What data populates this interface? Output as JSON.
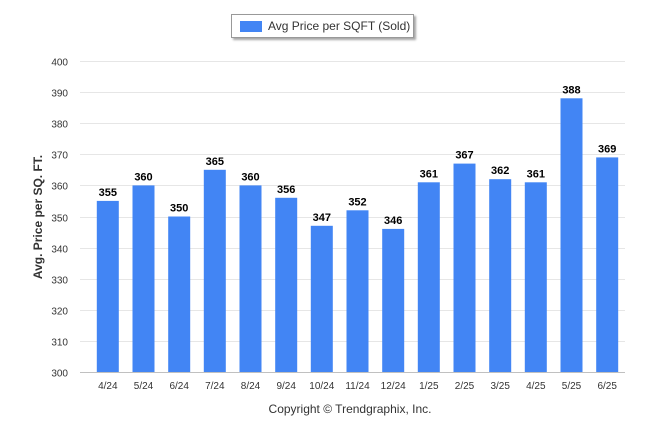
{
  "chart_data": {
    "type": "bar",
    "legend": {
      "label": "Avg Price per SQFT (Sold)",
      "placement": "top-center"
    },
    "ylabel": "Avg. Price per SQ. FT.",
    "xlabel": "",
    "ylim": [
      300,
      400
    ],
    "y_ticks": [
      300,
      310,
      320,
      330,
      340,
      350,
      360,
      370,
      380,
      390,
      400
    ],
    "grid": true,
    "categories": [
      "4/24",
      "5/24",
      "6/24",
      "7/24",
      "8/24",
      "9/24",
      "10/24",
      "11/24",
      "12/24",
      "1/25",
      "2/25",
      "3/25",
      "4/25",
      "5/25",
      "6/25"
    ],
    "series": [
      {
        "name": "Avg Price per SQFT (Sold)",
        "values": [
          355,
          360,
          350,
          365,
          360,
          356,
          347,
          352,
          346,
          361,
          367,
          362,
          361,
          388,
          369
        ],
        "color": "#4285f4"
      }
    ]
  },
  "footer": {
    "copyright": "Copyright © Trendgraphix, Inc."
  },
  "colors": {
    "bar": "#4285f4",
    "grid": "#e6e6e6",
    "axis": "#c0c0c0",
    "text": "#333333"
  }
}
